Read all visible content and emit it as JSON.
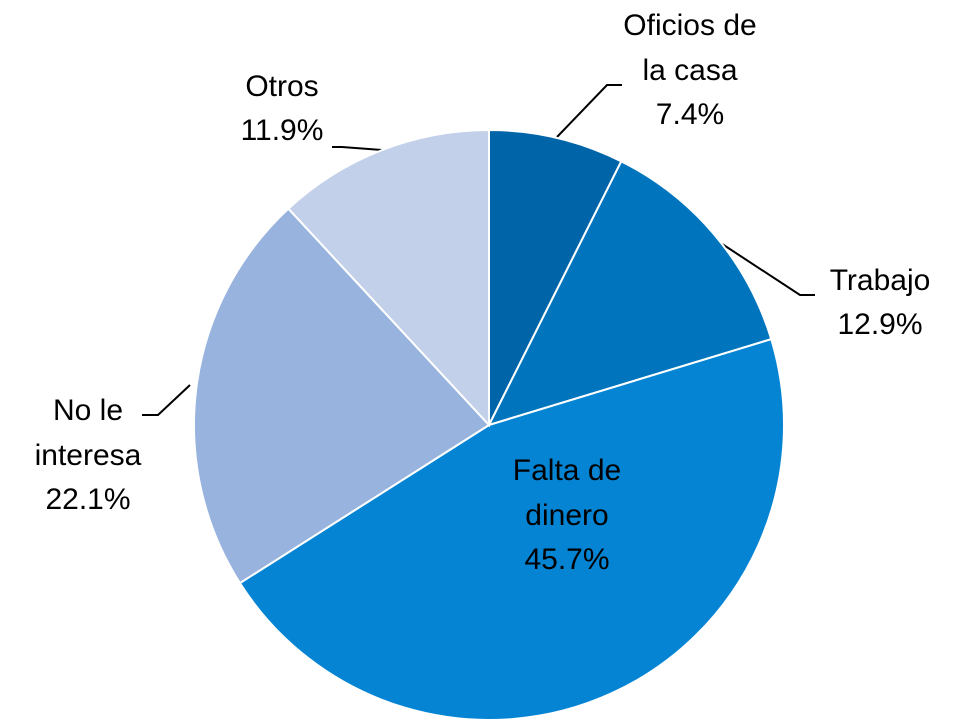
{
  "chart_data": {
    "type": "pie",
    "categories": [
      "Oficios de la casa",
      "Trabajo",
      "Falta de dinero",
      "No le interesa",
      "Otros"
    ],
    "values": [
      7.4,
      12.9,
      45.7,
      22.1,
      11.9
    ],
    "value_labels": [
      "7.4%",
      "12.9%",
      "45.7%",
      "22.1%",
      "11.9%"
    ],
    "colors": [
      "#0064a8",
      "#0075be",
      "#0584d4",
      "#97b3de",
      "#c2d0e9"
    ]
  }
}
